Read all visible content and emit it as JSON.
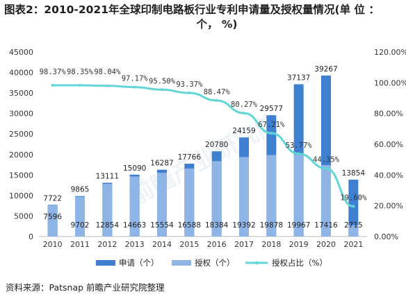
{
  "title_line1": "图表2：2010-2021年全球印制电路板行业专利申请量及授权量情况(单 位 ：",
  "title_line2": "个， %)",
  "source": "资料来源：Patsnap 前瞻产业研究院整理",
  "watermark": "前瞻产业研究院",
  "colors": {
    "applications": "#3f7fd0",
    "grants": "#8fb4e6",
    "ratio": "#62d6d6",
    "axis_text": "#333333",
    "grid": "#dddddd"
  },
  "chart_data": {
    "type": "bar",
    "categories": [
      "2010",
      "2011",
      "2012",
      "2013",
      "2014",
      "2015",
      "2016",
      "2017",
      "2018",
      "2019",
      "2020",
      "2021"
    ],
    "series": [
      {
        "name": "申请（个）",
        "kind": "bar",
        "values": [
          7722,
          9865,
          13111,
          15090,
          16287,
          17766,
          20780,
          24159,
          29577,
          37137,
          39267,
          13854
        ],
        "labels": [
          "7722",
          "9865",
          "13111",
          "15090",
          "16287",
          "17766",
          "20780",
          "24159",
          "29577",
          "37137",
          "39267",
          "13854"
        ]
      },
      {
        "name": "授权（个）",
        "kind": "bar",
        "values": [
          7596,
          9702,
          12854,
          14663,
          15554,
          16588,
          18384,
          19392,
          19878,
          19967,
          17416,
          2715
        ],
        "labels": [
          "7596",
          "9702",
          "12854",
          "14663",
          "15554",
          "16588",
          "18384",
          "19392",
          "19878",
          "19967",
          "17416",
          "2715"
        ]
      },
      {
        "name": "授权占比（%）",
        "kind": "line",
        "axis": "right",
        "values": [
          98.37,
          98.35,
          98.04,
          97.17,
          95.5,
          93.37,
          88.47,
          80.27,
          67.21,
          53.77,
          44.35,
          19.6
        ],
        "labels": [
          "98.37%",
          "98.35%",
          "98.04%",
          "97.17%",
          "95.50%",
          "93.37%",
          "88.47%",
          "80.27%",
          "67.21%",
          "53.77%",
          "44.35%",
          "19.60%"
        ]
      }
    ],
    "y_left": {
      "min": 0,
      "max": 45000,
      "ticks": [
        "0",
        "5000",
        "10000",
        "15000",
        "20000",
        "25000",
        "30000",
        "35000",
        "40000",
        "45000"
      ]
    },
    "y_right": {
      "min": 0,
      "max": 120,
      "ticks": [
        "0.00%",
        "20.00%",
        "40.00%",
        "60.00%",
        "80.00%",
        "100.00%",
        "120.00%"
      ]
    },
    "legend": {
      "position": "bottom",
      "items": [
        "申请（个）",
        "授权（个）",
        "授权占比（%）"
      ]
    }
  }
}
